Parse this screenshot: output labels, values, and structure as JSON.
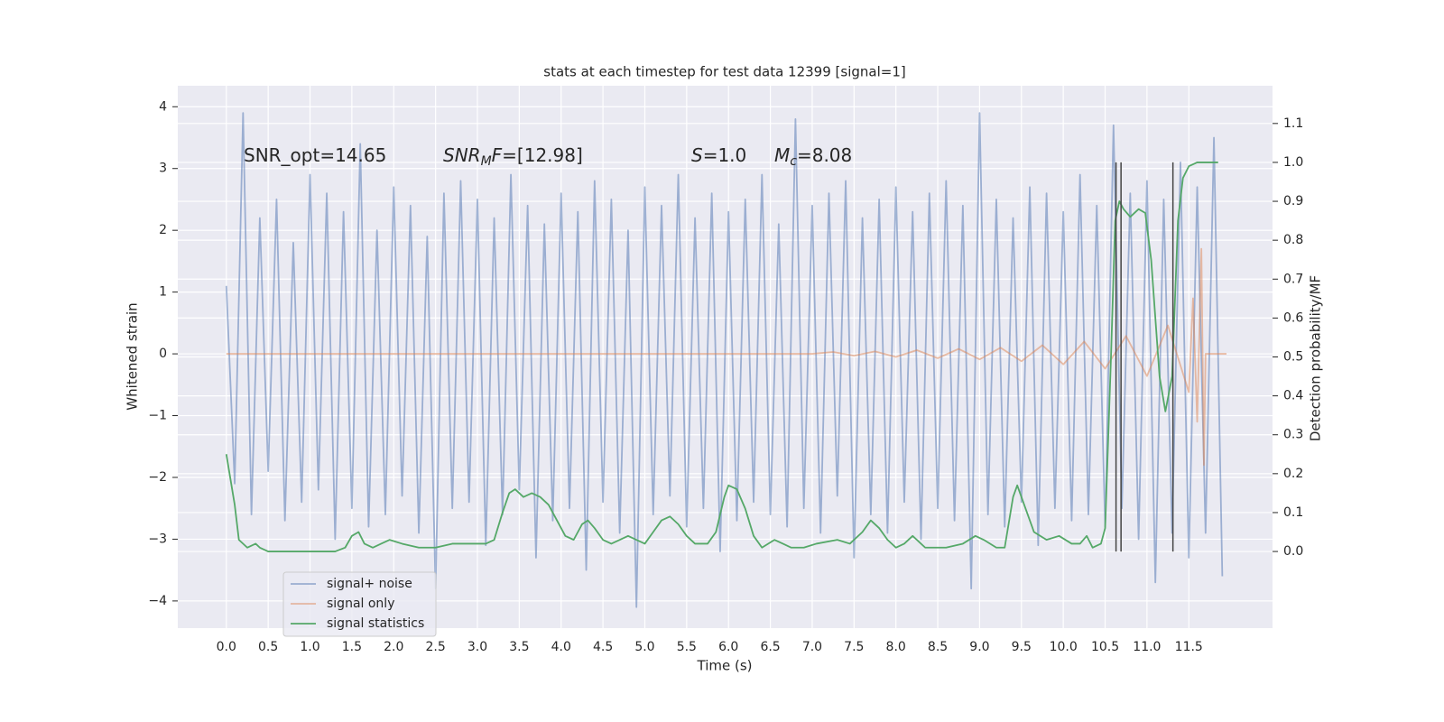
{
  "chart_data": {
    "type": "line",
    "title": "stats at each timestep for test data 12399 [signal=1]",
    "x_label": "Time (s)",
    "y_label": "Whitened strain",
    "y2_label": "Detection probability/MF",
    "xlim": [
      -0.58,
      12.5
    ],
    "ylim": [
      -4.44,
      4.34
    ],
    "y2lim": [
      -0.197,
      1.197
    ],
    "xticks": [
      {
        "value": 0,
        "label": "0.0"
      },
      0.5,
      {
        "value": 1,
        "label": "1.0"
      },
      1.5,
      {
        "value": 2,
        "label": "2.0"
      },
      2.5,
      {
        "value": 3,
        "label": "3.0"
      },
      3.5,
      {
        "value": 4,
        "label": "4.0"
      },
      4.5,
      {
        "value": 5,
        "label": "5.0"
      },
      5.5,
      {
        "value": 6,
        "label": "6.0"
      },
      6.5,
      {
        "value": 7,
        "label": "7.0"
      },
      7.5,
      {
        "value": 8,
        "label": "8.0"
      },
      8.5,
      {
        "value": 9,
        "label": "9.0"
      },
      9.5,
      {
        "value": 10,
        "label": "10.0"
      },
      10.5,
      {
        "value": 11,
        "label": "11.0"
      },
      11.5
    ],
    "yticks": [
      {
        "value": -4,
        "label": "−4"
      },
      {
        "value": -3,
        "label": "−3"
      },
      {
        "value": -2,
        "label": "−2"
      },
      {
        "value": -1,
        "label": "−1"
      },
      0,
      1,
      2,
      3,
      4
    ],
    "y2ticks": [
      {
        "value": 0,
        "label": "0.0"
      },
      0.1,
      0.2,
      0.3,
      0.4,
      0.5,
      0.6,
      0.7,
      0.8,
      0.9,
      {
        "value": 1,
        "label": "1.0"
      },
      1.1
    ],
    "grid": true,
    "legend_position": "lower left",
    "series": [
      {
        "name": "signal+ noise",
        "color": "#4c72b0",
        "alpha": 0.5,
        "x": [
          0.0,
          0.1,
          0.2,
          0.3,
          0.4,
          0.5,
          0.6,
          0.7,
          0.8,
          0.9,
          1.0,
          1.1,
          1.2,
          1.3,
          1.4,
          1.5,
          1.6,
          1.7,
          1.8,
          1.9,
          2.0,
          2.1,
          2.2,
          2.3,
          2.4,
          2.5,
          2.6,
          2.7,
          2.8,
          2.9,
          3.0,
          3.1,
          3.2,
          3.3,
          3.4,
          3.5,
          3.6,
          3.7,
          3.8,
          3.9,
          4.0,
          4.1,
          4.2,
          4.3,
          4.4,
          4.5,
          4.6,
          4.7,
          4.8,
          4.9,
          5.0,
          5.1,
          5.2,
          5.3,
          5.4,
          5.5,
          5.6,
          5.7,
          5.8,
          5.9,
          6.0,
          6.1,
          6.2,
          6.3,
          6.4,
          6.5,
          6.6,
          6.7,
          6.8,
          6.9,
          7.0,
          7.1,
          7.2,
          7.3,
          7.4,
          7.5,
          7.6,
          7.7,
          7.8,
          7.9,
          8.0,
          8.1,
          8.2,
          8.3,
          8.4,
          8.5,
          8.6,
          8.7,
          8.8,
          8.9,
          9.0,
          9.1,
          9.2,
          9.3,
          9.4,
          9.5,
          9.6,
          9.7,
          9.8,
          9.9,
          10.0,
          10.1,
          10.2,
          10.3,
          10.4,
          10.5,
          10.6,
          10.7,
          10.8,
          10.9,
          11.0,
          11.1,
          11.2,
          11.3,
          11.4,
          11.5,
          11.6,
          11.7,
          11.8,
          11.9
        ],
        "values": [
          1.1,
          -2.1,
          3.9,
          -2.6,
          2.2,
          -1.9,
          2.5,
          -2.7,
          1.8,
          -2.4,
          2.9,
          -2.2,
          2.6,
          -3.0,
          2.3,
          -2.5,
          3.4,
          -2.8,
          2.0,
          -2.6,
          2.7,
          -2.3,
          2.4,
          -2.9,
          1.9,
          -3.8,
          2.6,
          -2.5,
          2.8,
          -2.4,
          2.5,
          -3.1,
          2.2,
          -2.6,
          2.9,
          -2.2,
          2.4,
          -3.3,
          2.1,
          -2.7,
          2.6,
          -2.5,
          2.3,
          -3.5,
          2.8,
          -2.4,
          2.5,
          -2.9,
          2.0,
          -4.1,
          2.7,
          -2.6,
          2.4,
          -2.3,
          2.9,
          -2.8,
          2.2,
          -2.5,
          2.6,
          -3.2,
          2.3,
          -2.7,
          2.5,
          -2.4,
          2.9,
          -2.6,
          2.1,
          -2.8,
          3.8,
          -2.5,
          2.4,
          -2.9,
          2.6,
          -2.3,
          2.8,
          -3.3,
          2.2,
          -2.6,
          2.5,
          -2.9,
          2.7,
          -2.4,
          2.3,
          -3.0,
          2.6,
          -2.5,
          2.8,
          -2.7,
          2.4,
          -3.8,
          3.9,
          -2.6,
          2.5,
          -2.8,
          2.2,
          -2.4,
          2.7,
          -3.1,
          2.6,
          -2.5,
          2.3,
          -2.7,
          2.9,
          -2.6,
          2.4,
          -2.8,
          3.7,
          -2.5,
          2.6,
          -3.0,
          2.8,
          -3.7,
          2.5,
          -2.9,
          3.1,
          -3.3,
          2.7,
          -2.9,
          3.5,
          -3.6
        ]
      },
      {
        "name": "signal only",
        "color": "#dd8452",
        "alpha": 0.5,
        "x": [
          0.0,
          7.0,
          7.25,
          7.5,
          7.75,
          8.0,
          8.25,
          8.5,
          8.75,
          9.0,
          9.25,
          9.5,
          9.75,
          10.0,
          10.25,
          10.5,
          10.75,
          11.0,
          11.25,
          11.5,
          11.55,
          11.6,
          11.65,
          11.68,
          11.7,
          11.95
        ],
        "values": [
          0,
          0,
          0.03,
          -0.03,
          0.04,
          -0.05,
          0.06,
          -0.07,
          0.08,
          -0.09,
          0.1,
          -0.12,
          0.14,
          -0.17,
          0.2,
          -0.24,
          0.29,
          -0.36,
          0.46,
          -0.62,
          0.9,
          -1.1,
          1.7,
          -1.8,
          0,
          0
        ]
      },
      {
        "name": "signal statistics",
        "color": "#55a868",
        "alpha": 1,
        "axis": "y2",
        "x": [
          0,
          0.1,
          0.15,
          0.25,
          0.35,
          0.4,
          0.5,
          0.7,
          0.9,
          1.1,
          1.3,
          1.42,
          1.5,
          1.58,
          1.65,
          1.75,
          1.85,
          1.95,
          2.1,
          2.3,
          2.5,
          2.7,
          2.9,
          3.1,
          3.2,
          3.3,
          3.38,
          3.45,
          3.55,
          3.65,
          3.75,
          3.85,
          3.95,
          4.05,
          4.15,
          4.25,
          4.32,
          4.4,
          4.5,
          4.6,
          4.7,
          4.8,
          4.9,
          5.0,
          5.1,
          5.2,
          5.3,
          5.4,
          5.5,
          5.6,
          5.75,
          5.85,
          5.95,
          6.0,
          6.1,
          6.2,
          6.3,
          6.4,
          6.55,
          6.65,
          6.75,
          6.9,
          7.05,
          7.3,
          7.45,
          7.6,
          7.7,
          7.8,
          7.9,
          8.0,
          8.1,
          8.2,
          8.35,
          8.6,
          8.8,
          8.95,
          9.05,
          9.2,
          9.3,
          9.4,
          9.45,
          9.55,
          9.65,
          9.8,
          9.95,
          10.1,
          10.2,
          10.28,
          10.35,
          10.45,
          10.5,
          10.57,
          10.62,
          10.67,
          10.72,
          10.8,
          10.9,
          10.98,
          11.05,
          11.15,
          11.22,
          11.3,
          11.37,
          11.43,
          11.5,
          11.6,
          11.7,
          11.85
        ],
        "values": [
          0.25,
          0.12,
          0.03,
          0.01,
          0.02,
          0.01,
          0.0,
          0.0,
          0.0,
          0.0,
          0.0,
          0.01,
          0.04,
          0.05,
          0.02,
          0.01,
          0.02,
          0.03,
          0.02,
          0.01,
          0.01,
          0.02,
          0.02,
          0.02,
          0.03,
          0.1,
          0.15,
          0.16,
          0.14,
          0.15,
          0.14,
          0.12,
          0.08,
          0.04,
          0.03,
          0.07,
          0.08,
          0.06,
          0.03,
          0.02,
          0.03,
          0.04,
          0.03,
          0.02,
          0.05,
          0.08,
          0.09,
          0.07,
          0.04,
          0.02,
          0.02,
          0.05,
          0.14,
          0.17,
          0.16,
          0.11,
          0.04,
          0.01,
          0.03,
          0.02,
          0.01,
          0.01,
          0.02,
          0.03,
          0.02,
          0.05,
          0.08,
          0.06,
          0.03,
          0.01,
          0.02,
          0.04,
          0.01,
          0.01,
          0.02,
          0.04,
          0.03,
          0.01,
          0.01,
          0.14,
          0.17,
          0.11,
          0.05,
          0.03,
          0.04,
          0.02,
          0.02,
          0.04,
          0.01,
          0.02,
          0.06,
          0.5,
          0.85,
          0.9,
          0.88,
          0.86,
          0.88,
          0.87,
          0.75,
          0.45,
          0.36,
          0.45,
          0.85,
          0.96,
          0.99,
          1.0,
          1.0,
          1.0
        ]
      }
    ],
    "vlines": {
      "x": [
        10.63,
        10.69,
        11.31
      ],
      "ymin": 0,
      "ymax": 1,
      "color": "#444444",
      "axis": "y2"
    },
    "annotations": [
      [
        {
          "text": "SNR_opt=14.65"
        }
      ],
      [
        {
          "text": "SNR",
          "style": "italic"
        },
        {
          "text": "M",
          "style": "sub"
        },
        {
          "text": "F",
          "style": "italic"
        },
        {
          "text": "=[12.98]"
        }
      ],
      [
        {
          "text": "S",
          "style": "italic"
        },
        {
          "text": "=1.0"
        }
      ],
      [
        {
          "text": "M",
          "style": "italic"
        },
        {
          "text": "c",
          "style": "sub"
        },
        {
          "text": "=8.08"
        }
      ]
    ]
  }
}
